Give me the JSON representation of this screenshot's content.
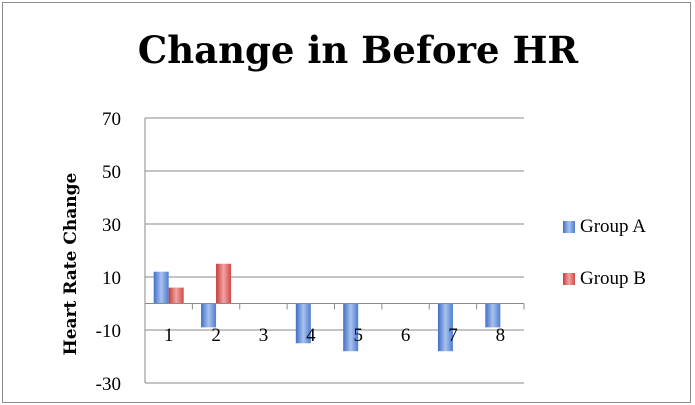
{
  "chart_data": {
    "type": "bar",
    "title": "Change in Before HR",
    "xlabel": "",
    "ylabel": "Heart Rate Change",
    "ylim": [
      -30,
      70
    ],
    "yticks": [
      70,
      50,
      30,
      10,
      -10,
      -30
    ],
    "categories": [
      "1",
      "2",
      "3",
      "4",
      "5",
      "6",
      "7",
      "8"
    ],
    "series": [
      {
        "name": "Group A",
        "values": [
          12,
          -9,
          0,
          -15,
          -18,
          0,
          -18,
          -9
        ],
        "color": "#5b87d3"
      },
      {
        "name": "Group B",
        "values": [
          6,
          15,
          0,
          0,
          0,
          0,
          0,
          0
        ],
        "color": "#d45552"
      }
    ],
    "grid": true,
    "legend": "right"
  }
}
